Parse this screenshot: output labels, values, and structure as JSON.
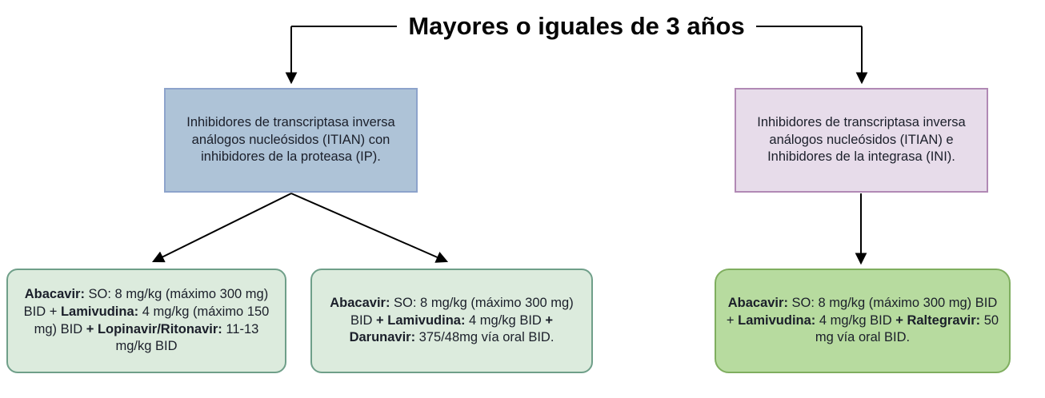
{
  "title": "Mayores o iguales de 3 años",
  "colors": {
    "category_left": {
      "fill": "#aec3d7",
      "border": "#8da3cb"
    },
    "category_right": {
      "fill": "#e7dcea",
      "border": "#b189b5"
    },
    "regimen_light": {
      "fill": "#dcebdd",
      "border": "#6f9f89"
    },
    "regimen_dark": {
      "fill": "#b7db9f",
      "border": "#7fae5f"
    },
    "line": "#000000",
    "text": "#1b1f2a"
  },
  "nodes": {
    "left_category": {
      "text": "Inhibidores de transcriptasa inversa análogos nucleósidos (ITIAN) con inhibidores de la proteasa (IP)."
    },
    "right_category": {
      "text": "Inhibidores de transcriptasa inversa análogos nucleósidos (ITIAN) e Inhibidores de la integrasa (INI)."
    },
    "regimen_lopinavir": {
      "segments": [
        {
          "text": "Abacavir:",
          "bold": true
        },
        {
          "text": " SO: 8 mg/kg (máximo 300 mg) BID + ",
          "bold": false
        },
        {
          "text": "Lamivudina:",
          "bold": true
        },
        {
          "text": " 4 mg/kg (máximo 150 mg) BID ",
          "bold": false
        },
        {
          "text": "+ Lopinavir/Ritonavir:",
          "bold": true
        },
        {
          "text": " 11-13 mg/kg BID",
          "bold": false
        }
      ]
    },
    "regimen_darunavir": {
      "segments": [
        {
          "text": "Abacavir:",
          "bold": true
        },
        {
          "text": " SO: 8 mg/kg (máximo 300 mg) BID ",
          "bold": false
        },
        {
          "text": "+ Lamivudina:",
          "bold": true
        },
        {
          "text": " 4 mg/kg BID ",
          "bold": false
        },
        {
          "text": "+ Darunavir:",
          "bold": true
        },
        {
          "text": "  375/48mg vía oral BID.",
          "bold": false
        }
      ]
    },
    "regimen_raltegravir": {
      "segments": [
        {
          "text": "Abacavir:",
          "bold": true
        },
        {
          "text": " SO: 8 mg/kg (máximo 300 mg) BID + ",
          "bold": false
        },
        {
          "text": "Lamivudina:",
          "bold": true
        },
        {
          "text": " 4 mg/kg BID ",
          "bold": false
        },
        {
          "text": "+ Raltegravir:",
          "bold": true
        },
        {
          "text": "  50 mg vía oral BID.",
          "bold": false
        }
      ]
    }
  }
}
